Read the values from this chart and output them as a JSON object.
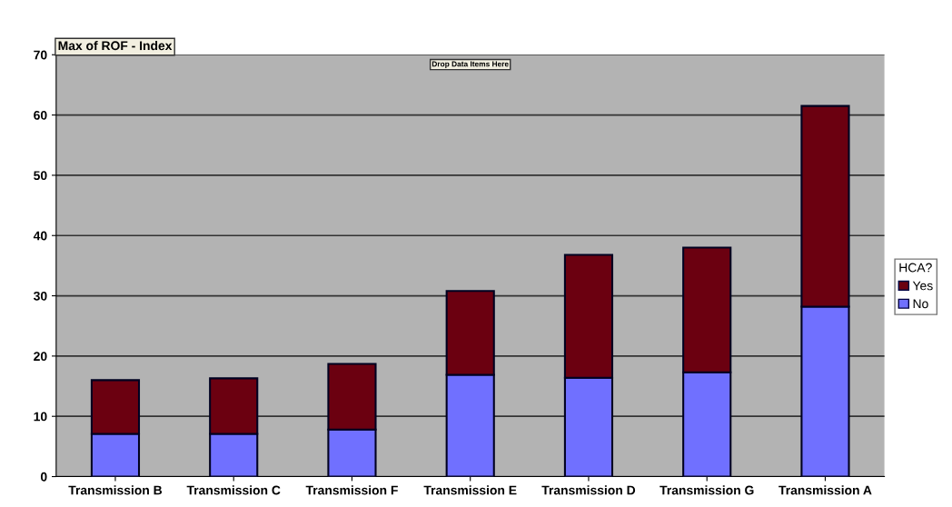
{
  "chart_data": {
    "type": "bar",
    "stacked": true,
    "categories": [
      "Transmission B",
      "Transmission C",
      "Transmission F",
      "Transmission E",
      "Transmission D",
      "Transmission G",
      "Transmission A"
    ],
    "series": [
      {
        "name": "No",
        "color": "#7070ff",
        "values": [
          7.1,
          7.1,
          7.8,
          16.9,
          16.4,
          17.3,
          28.2
        ]
      },
      {
        "name": "Yes",
        "color": "#6b0010",
        "values": [
          8.9,
          9.2,
          10.9,
          13.9,
          20.4,
          20.7,
          33.3
        ]
      }
    ],
    "ylim": [
      0,
      70
    ],
    "yticks": [
      0,
      10,
      20,
      30,
      40,
      50,
      60,
      70
    ],
    "grid": "y",
    "legend": "right",
    "legend_title": "HCA?",
    "annotations": [
      "Max of ROF - Index",
      "Drop Data Items Here"
    ]
  }
}
